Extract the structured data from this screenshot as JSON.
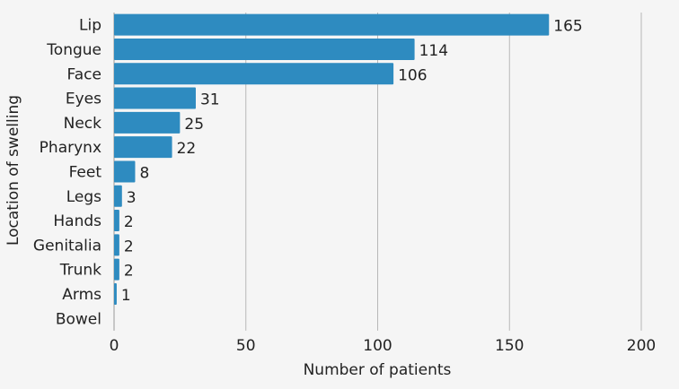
{
  "chart_data": {
    "type": "bar",
    "orientation": "horizontal",
    "categories": [
      "Lip",
      "Tongue",
      "Face",
      "Eyes",
      "Neck",
      "Pharynx",
      "Feet",
      "Legs",
      "Hands",
      "Genitalia",
      "Trunk",
      "Arms",
      "Bowel"
    ],
    "values": [
      165,
      114,
      106,
      31,
      25,
      22,
      8,
      3,
      2,
      2,
      2,
      1,
      null
    ],
    "xlabel": "Number of patients",
    "ylabel": "Location of swelling",
    "xlim": [
      0,
      200
    ],
    "xticks": [
      0,
      50,
      100,
      150,
      200
    ],
    "grid": "vertical",
    "data_labels": true,
    "bar_color": "#2e8bc0",
    "background": "#f5f5f5",
    "grid_color": "#b8b8b8"
  }
}
